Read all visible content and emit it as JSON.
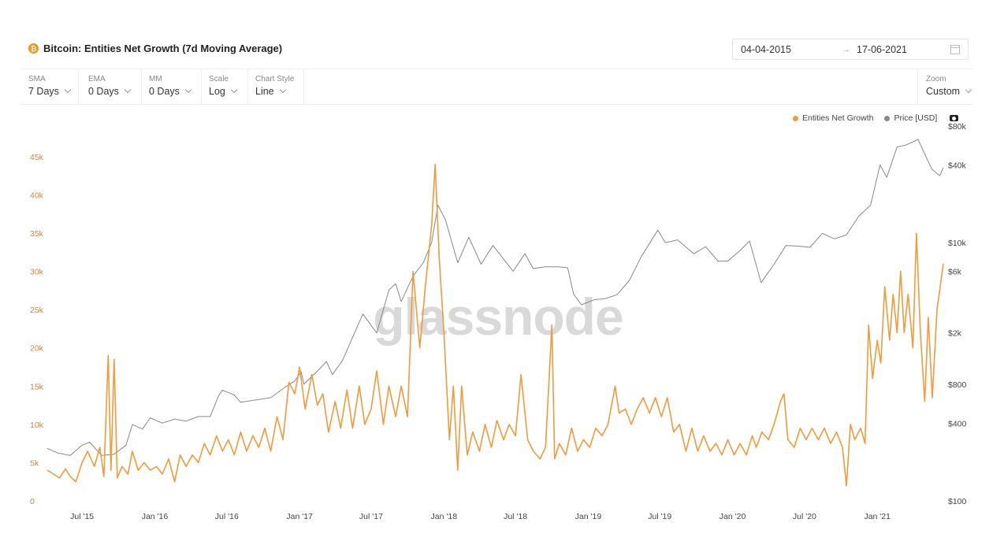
{
  "header": {
    "coin_symbol": "₿",
    "title": "Bitcoin: Entities Net Growth (7d Moving Average)"
  },
  "date_range": {
    "start": "04-04-2015",
    "end": "17-06-2021",
    "arrow": "→"
  },
  "controls": [
    {
      "label": "SMA",
      "value": "7 Days"
    },
    {
      "label": "EMA",
      "value": "0 Days"
    },
    {
      "label": "MM",
      "value": "0 Days"
    },
    {
      "label": "Scale",
      "value": "Log"
    },
    {
      "label": "Chart Style",
      "value": "Line"
    }
  ],
  "zoom": {
    "label": "Zoom",
    "value": "Custom"
  },
  "legend": [
    {
      "name": "Entities Net Growth",
      "color": "#f09a3a"
    },
    {
      "name": "Price [USD]",
      "color": "#888888"
    }
  ],
  "watermark": "glassnode",
  "chart_data": {
    "type": "line",
    "x_range": [
      "2015-04-04",
      "2021-06-17"
    ],
    "x_ticks": [
      "Jul '15",
      "Jan '16",
      "Jul '16",
      "Jan '17",
      "Jul '17",
      "Jan '18",
      "Jul '18",
      "Jan '19",
      "Jul '19",
      "Jan '20",
      "Jul '20",
      "Jan '21"
    ],
    "y_left_ticks": [
      "0",
      "5k",
      "10k",
      "15k",
      "20k",
      "25k",
      "30k",
      "35k",
      "40k",
      "45k"
    ],
    "y_left_range": [
      0,
      49000
    ],
    "y_right_ticks": [
      "$100",
      "$400",
      "$800",
      "$2k",
      "$6k",
      "$10k",
      "$40k",
      "$80k"
    ],
    "y_right_scale": "log",
    "y_right_range": [
      100,
      80000
    ],
    "grid": false,
    "legend_position": "top-right",
    "series": [
      {
        "name": "Entities Net Growth",
        "axis": "left",
        "color": "#f09a3a",
        "points": [
          [
            "2015-04-04",
            4000
          ],
          [
            "2015-04-20",
            3500
          ],
          [
            "2015-05-05",
            3000
          ],
          [
            "2015-05-20",
            4200
          ],
          [
            "2015-06-01",
            3200
          ],
          [
            "2015-06-15",
            2500
          ],
          [
            "2015-07-01",
            5000
          ],
          [
            "2015-07-15",
            6500
          ],
          [
            "2015-08-01",
            4500
          ],
          [
            "2015-08-15",
            7000
          ],
          [
            "2015-08-25",
            3200
          ],
          [
            "2015-09-05",
            19000
          ],
          [
            "2015-09-12",
            4000
          ],
          [
            "2015-09-20",
            18500
          ],
          [
            "2015-09-28",
            3000
          ],
          [
            "2015-10-10",
            4500
          ],
          [
            "2015-10-25",
            3500
          ],
          [
            "2015-11-05",
            6500
          ],
          [
            "2015-11-20",
            4000
          ],
          [
            "2015-12-05",
            5000
          ],
          [
            "2015-12-20",
            4000
          ],
          [
            "2016-01-05",
            4500
          ],
          [
            "2016-01-20",
            3500
          ],
          [
            "2016-02-05",
            5500
          ],
          [
            "2016-02-20",
            2500
          ],
          [
            "2016-03-05",
            6000
          ],
          [
            "2016-03-20",
            4500
          ],
          [
            "2016-04-05",
            6000
          ],
          [
            "2016-04-20",
            5000
          ],
          [
            "2016-05-05",
            7500
          ],
          [
            "2016-05-20",
            6000
          ],
          [
            "2016-06-05",
            8500
          ],
          [
            "2016-06-20",
            6500
          ],
          [
            "2016-07-05",
            8000
          ],
          [
            "2016-07-20",
            6000
          ],
          [
            "2016-08-05",
            9000
          ],
          [
            "2016-08-20",
            6500
          ],
          [
            "2016-09-05",
            8500
          ],
          [
            "2016-09-20",
            7000
          ],
          [
            "2016-10-05",
            9500
          ],
          [
            "2016-10-20",
            6500
          ],
          [
            "2016-11-05",
            11000
          ],
          [
            "2016-11-20",
            8000
          ],
          [
            "2016-12-05",
            15500
          ],
          [
            "2016-12-20",
            14000
          ],
          [
            "2017-01-01",
            17500
          ],
          [
            "2017-01-15",
            12000
          ],
          [
            "2017-02-01",
            16500
          ],
          [
            "2017-02-15",
            12500
          ],
          [
            "2017-03-01",
            14000
          ],
          [
            "2017-03-15",
            9000
          ],
          [
            "2017-04-01",
            13000
          ],
          [
            "2017-04-15",
            9500
          ],
          [
            "2017-05-01",
            14500
          ],
          [
            "2017-05-15",
            9500
          ],
          [
            "2017-06-01",
            15000
          ],
          [
            "2017-06-15",
            10000
          ],
          [
            "2017-07-01",
            12000
          ],
          [
            "2017-07-15",
            17000
          ],
          [
            "2017-08-01",
            10000
          ],
          [
            "2017-08-15",
            15000
          ],
          [
            "2017-09-01",
            11000
          ],
          [
            "2017-09-15",
            15000
          ],
          [
            "2017-10-01",
            11000
          ],
          [
            "2017-10-15",
            30000
          ],
          [
            "2017-11-01",
            20000
          ],
          [
            "2017-11-15",
            28000
          ],
          [
            "2017-12-01",
            36000
          ],
          [
            "2017-12-10",
            44000
          ],
          [
            "2017-12-20",
            32000
          ],
          [
            "2018-01-01",
            22000
          ],
          [
            "2018-01-15",
            8000
          ],
          [
            "2018-01-25",
            15000
          ],
          [
            "2018-02-05",
            4000
          ],
          [
            "2018-02-15",
            15000
          ],
          [
            "2018-03-01",
            6000
          ],
          [
            "2018-03-15",
            9000
          ],
          [
            "2018-04-01",
            6500
          ],
          [
            "2018-04-15",
            10000
          ],
          [
            "2018-05-01",
            7000
          ],
          [
            "2018-05-15",
            10500
          ],
          [
            "2018-06-01",
            8000
          ],
          [
            "2018-06-15",
            10000
          ],
          [
            "2018-07-01",
            8500
          ],
          [
            "2018-07-15",
            16500
          ],
          [
            "2018-08-01",
            8000
          ],
          [
            "2018-08-15",
            6500
          ],
          [
            "2018-09-01",
            5500
          ],
          [
            "2018-09-15",
            7000
          ],
          [
            "2018-10-01",
            23000
          ],
          [
            "2018-10-08",
            5500
          ],
          [
            "2018-10-20",
            7500
          ],
          [
            "2018-11-05",
            6000
          ],
          [
            "2018-11-20",
            9500
          ],
          [
            "2018-12-05",
            6500
          ],
          [
            "2018-12-20",
            8000
          ],
          [
            "2019-01-05",
            7000
          ],
          [
            "2019-01-20",
            9500
          ],
          [
            "2019-02-05",
            8500
          ],
          [
            "2019-02-20",
            10000
          ],
          [
            "2019-03-01",
            12500
          ],
          [
            "2019-03-10",
            15000
          ],
          [
            "2019-03-20",
            11500
          ],
          [
            "2019-04-05",
            12000
          ],
          [
            "2019-04-20",
            10000
          ],
          [
            "2019-05-05",
            12000
          ],
          [
            "2019-05-20",
            13500
          ],
          [
            "2019-06-05",
            11500
          ],
          [
            "2019-06-20",
            13500
          ],
          [
            "2019-07-05",
            11000
          ],
          [
            "2019-07-20",
            13500
          ],
          [
            "2019-08-05",
            9000
          ],
          [
            "2019-08-20",
            10000
          ],
          [
            "2019-09-05",
            6500
          ],
          [
            "2019-09-20",
            9500
          ],
          [
            "2019-10-05",
            6500
          ],
          [
            "2019-10-20",
            8500
          ],
          [
            "2019-11-05",
            6500
          ],
          [
            "2019-11-20",
            7500
          ],
          [
            "2019-12-05",
            6000
          ],
          [
            "2019-12-20",
            8000
          ],
          [
            "2020-01-05",
            6000
          ],
          [
            "2020-01-20",
            7500
          ],
          [
            "2020-02-05",
            6000
          ],
          [
            "2020-02-20",
            8500
          ],
          [
            "2020-03-01",
            7000
          ],
          [
            "2020-03-15",
            9000
          ],
          [
            "2020-04-01",
            8000
          ],
          [
            "2020-04-15",
            10000
          ],
          [
            "2020-05-01",
            13000
          ],
          [
            "2020-05-10",
            14000
          ],
          [
            "2020-05-20",
            8000
          ],
          [
            "2020-06-05",
            7000
          ],
          [
            "2020-06-20",
            9500
          ],
          [
            "2020-07-05",
            8000
          ],
          [
            "2020-07-20",
            9500
          ],
          [
            "2020-08-05",
            8000
          ],
          [
            "2020-08-20",
            9500
          ],
          [
            "2020-09-05",
            7500
          ],
          [
            "2020-09-20",
            9000
          ],
          [
            "2020-10-05",
            7000
          ],
          [
            "2020-10-15",
            2000
          ],
          [
            "2020-10-25",
            10000
          ],
          [
            "2020-11-05",
            8000
          ],
          [
            "2020-11-20",
            9500
          ],
          [
            "2020-12-01",
            7500
          ],
          [
            "2020-12-10",
            23000
          ],
          [
            "2020-12-20",
            16000
          ],
          [
            "2021-01-01",
            21000
          ],
          [
            "2021-01-10",
            18000
          ],
          [
            "2021-01-20",
            28000
          ],
          [
            "2021-02-01",
            21000
          ],
          [
            "2021-02-10",
            27000
          ],
          [
            "2021-02-20",
            22000
          ],
          [
            "2021-03-01",
            30000
          ],
          [
            "2021-03-10",
            22000
          ],
          [
            "2021-03-20",
            27000
          ],
          [
            "2021-04-01",
            20000
          ],
          [
            "2021-04-10",
            35000
          ],
          [
            "2021-04-20",
            22000
          ],
          [
            "2021-05-01",
            13000
          ],
          [
            "2021-05-10",
            24000
          ],
          [
            "2021-05-20",
            13500
          ],
          [
            "2021-06-01",
            25000
          ],
          [
            "2021-06-17",
            31000
          ]
        ]
      },
      {
        "name": "Price [USD]",
        "axis": "right",
        "color": "#888888",
        "points": [
          [
            "2015-04-04",
            255
          ],
          [
            "2015-05-01",
            235
          ],
          [
            "2015-06-01",
            225
          ],
          [
            "2015-07-01",
            270
          ],
          [
            "2015-07-20",
            285
          ],
          [
            "2015-08-20",
            225
          ],
          [
            "2015-09-20",
            230
          ],
          [
            "2015-10-20",
            270
          ],
          [
            "2015-11-05",
            390
          ],
          [
            "2015-12-01",
            360
          ],
          [
            "2015-12-20",
            440
          ],
          [
            "2016-01-20",
            400
          ],
          [
            "2016-02-20",
            430
          ],
          [
            "2016-03-20",
            415
          ],
          [
            "2016-04-20",
            450
          ],
          [
            "2016-05-20",
            450
          ],
          [
            "2016-06-10",
            650
          ],
          [
            "2016-06-20",
            720
          ],
          [
            "2016-07-20",
            660
          ],
          [
            "2016-08-05",
            580
          ],
          [
            "2016-09-20",
            610
          ],
          [
            "2016-10-20",
            630
          ],
          [
            "2016-11-20",
            740
          ],
          [
            "2016-12-20",
            850
          ],
          [
            "2017-01-05",
            1000
          ],
          [
            "2017-01-12",
            800
          ],
          [
            "2017-02-20",
            1050
          ],
          [
            "2017-03-10",
            1200
          ],
          [
            "2017-03-25",
            950
          ],
          [
            "2017-04-20",
            1230
          ],
          [
            "2017-05-20",
            2000
          ],
          [
            "2017-06-10",
            2800
          ],
          [
            "2017-07-15",
            2000
          ],
          [
            "2017-08-15",
            4300
          ],
          [
            "2017-09-01",
            4800
          ],
          [
            "2017-09-15",
            3500
          ],
          [
            "2017-10-15",
            5500
          ],
          [
            "2017-11-10",
            7000
          ],
          [
            "2017-12-01",
            10000
          ],
          [
            "2017-12-17",
            19500
          ],
          [
            "2018-01-05",
            15000
          ],
          [
            "2018-02-05",
            7000
          ],
          [
            "2018-03-05",
            11000
          ],
          [
            "2018-04-05",
            6800
          ],
          [
            "2018-05-05",
            9500
          ],
          [
            "2018-06-25",
            6000
          ],
          [
            "2018-07-25",
            8200
          ],
          [
            "2018-08-15",
            6300
          ],
          [
            "2018-09-15",
            6500
          ],
          [
            "2018-10-15",
            6500
          ],
          [
            "2018-11-10",
            6400
          ],
          [
            "2018-11-25",
            4000
          ],
          [
            "2018-12-15",
            3300
          ],
          [
            "2019-01-15",
            3600
          ],
          [
            "2019-02-15",
            3700
          ],
          [
            "2019-03-15",
            3950
          ],
          [
            "2019-04-15",
            5100
          ],
          [
            "2019-05-15",
            7800
          ],
          [
            "2019-06-26",
            12500
          ],
          [
            "2019-07-15",
            10000
          ],
          [
            "2019-08-15",
            10500
          ],
          [
            "2019-09-25",
            8200
          ],
          [
            "2019-10-25",
            9300
          ],
          [
            "2019-11-25",
            7200
          ],
          [
            "2019-12-20",
            7200
          ],
          [
            "2020-01-20",
            8700
          ],
          [
            "2020-02-13",
            10300
          ],
          [
            "2020-03-13",
            4900
          ],
          [
            "2020-04-15",
            6800
          ],
          [
            "2020-05-15",
            9500
          ],
          [
            "2020-06-15",
            9400
          ],
          [
            "2020-07-15",
            9200
          ],
          [
            "2020-08-15",
            11800
          ],
          [
            "2020-09-15",
            10700
          ],
          [
            "2020-10-15",
            11500
          ],
          [
            "2020-11-15",
            16000
          ],
          [
            "2020-12-15",
            19500
          ],
          [
            "2021-01-08",
            40000
          ],
          [
            "2021-01-25",
            32000
          ],
          [
            "2021-02-20",
            55000
          ],
          [
            "2021-03-15",
            57000
          ],
          [
            "2021-04-14",
            63000
          ],
          [
            "2021-05-19",
            37000
          ],
          [
            "2021-06-08",
            33000
          ],
          [
            "2021-06-17",
            38000
          ]
        ]
      }
    ]
  }
}
